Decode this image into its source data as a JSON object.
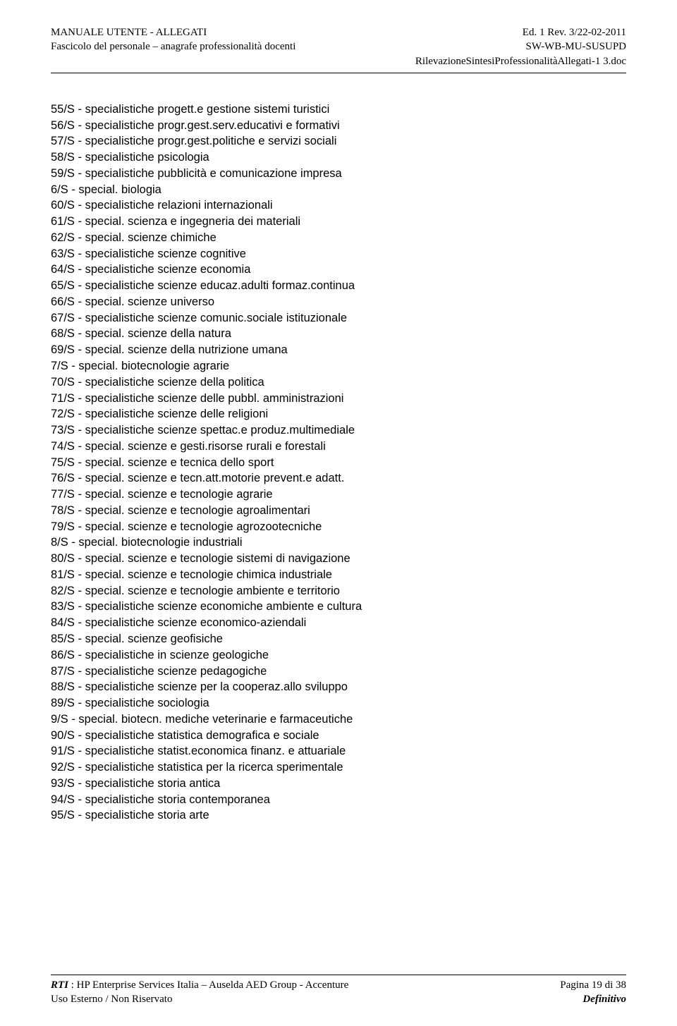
{
  "header": {
    "left1": "MANUALE UTENTE - ALLEGATI",
    "left2": "Fascicolo del personale – anagrafe professionalità docenti",
    "right1": "Ed. 1 Rev. 3/22-02-2011",
    "right2": "SW-WB-MU-SUSUPD",
    "right3": "RilevazioneSintesiProfessionalitàAllegati-1 3.doc"
  },
  "lines": [
    "55/S - specialistiche progett.e gestione sistemi turistici",
    "56/S - specialistiche progr.gest.serv.educativi e formativi",
    "57/S - specialistiche progr.gest.politiche e servizi sociali",
    "58/S - specialistiche psicologia",
    "59/S - specialistiche pubblicità e comunicazione impresa",
    "6/S - special. biologia",
    "60/S - specialistiche relazioni internazionali",
    "61/S - special. scienza e ingegneria dei materiali",
    "62/S - special. scienze chimiche",
    "63/S - specialistiche scienze cognitive",
    "64/S - specialistiche scienze economia",
    "65/S - specialistiche scienze educaz.adulti formaz.continua",
    "66/S - special. scienze universo",
    "67/S - specialistiche scienze comunic.sociale istituzionale",
    "68/S - special. scienze della natura",
    "69/S - special. scienze della nutrizione umana",
    "7/S - special. biotecnologie agrarie",
    "70/S - specialistiche scienze della politica",
    "71/S - specialistiche scienze delle pubbl. amministrazioni",
    "72/S - specialistiche scienze delle religioni",
    "73/S - specialistiche scienze spettac.e produz.multimediale",
    "74/S - special. scienze e gesti.risorse rurali e forestali",
    "75/S - special. scienze e tecnica dello sport",
    "76/S - special. scienze e tecn.att.motorie prevent.e adatt.",
    "77/S - special. scienze e tecnologie agrarie",
    "78/S - special. scienze e tecnologie agroalimentari",
    "79/S - special. scienze e tecnologie agrozootecniche",
    "8/S - special. biotecnologie industriali",
    "80/S - special. scienze e tecnologie sistemi di navigazione",
    "81/S - special. scienze e tecnologie chimica industriale",
    "82/S - special. scienze e tecnologie ambiente e territorio",
    "83/S - specialistiche scienze economiche ambiente e cultura",
    "84/S - specialistiche scienze economico-aziendali",
    "85/S - special. scienze geofisiche",
    "86/S - specialistiche in scienze geologiche",
    "87/S - specialistiche scienze pedagogiche",
    "88/S - specialistiche scienze per la cooperaz.allo sviluppo",
    "89/S - specialistiche sociologia",
    "9/S - special. biotecn. mediche veterinarie e farmaceutiche",
    "90/S - specialistiche statistica demografica e sociale",
    "91/S - specialistiche statist.economica finanz. e attuariale",
    "92/S - specialistiche statistica per la ricerca sperimentale",
    "93/S - specialistiche storia antica",
    "94/S - specialistiche storia contemporanea",
    "95/S - specialistiche storia arte"
  ],
  "footer": {
    "rti_label": "RTI",
    "rti_rest": " : HP Enterprise Services Italia – Auselda AED Group - Accenture",
    "page": "Pagina 19  di 38",
    "usage": "Uso Esterno / Non Riservato",
    "status": "Definitivo"
  }
}
